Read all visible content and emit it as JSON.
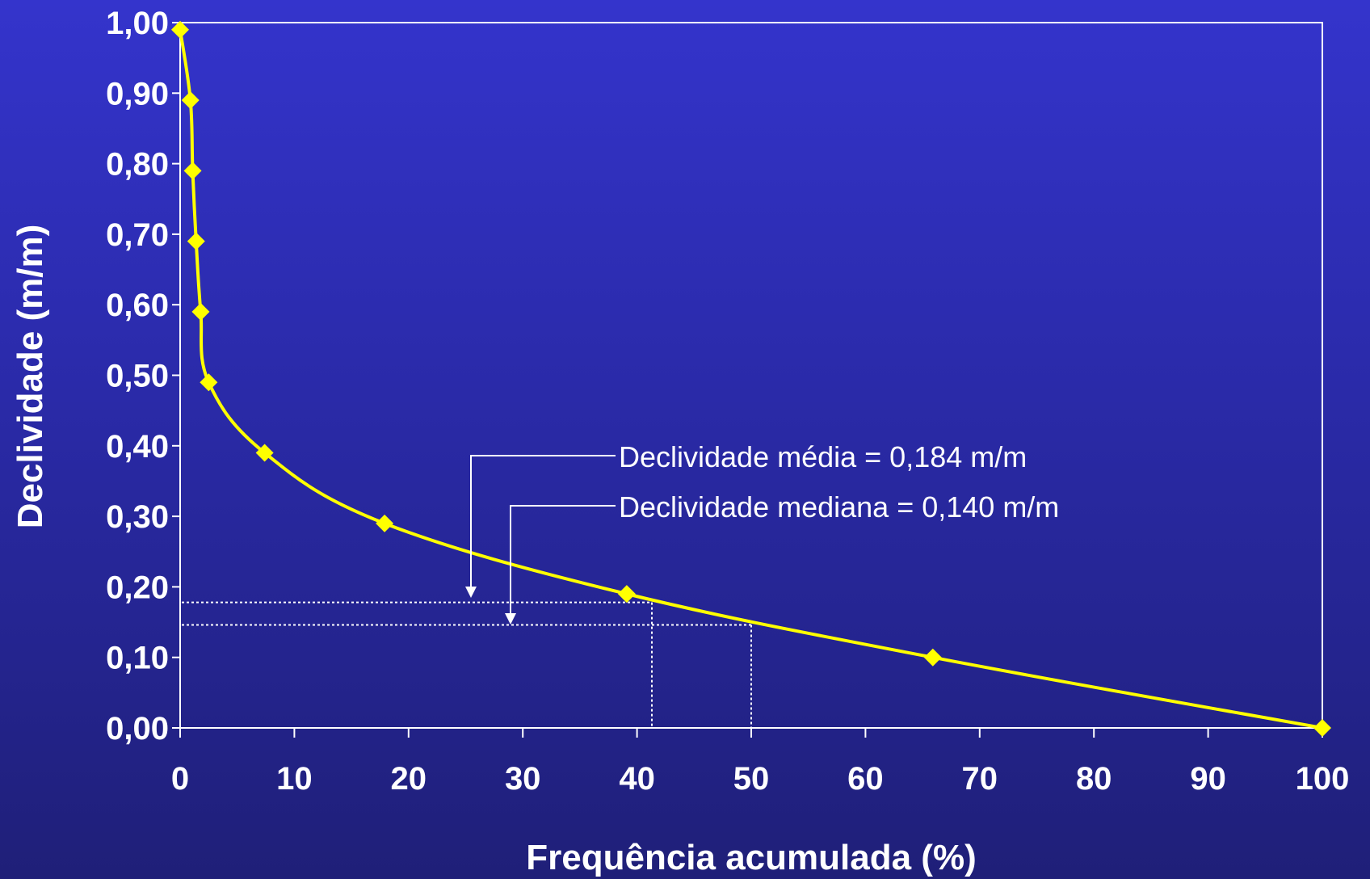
{
  "chart_data": {
    "type": "line",
    "xlabel": "Frequência acumulada (%)",
    "ylabel": "Declividade (m/m)",
    "xlim": [
      0,
      100
    ],
    "ylim": [
      0,
      1
    ],
    "x_ticks": [
      "0",
      "10",
      "20",
      "30",
      "40",
      "50",
      "60",
      "70",
      "80",
      "90",
      "100"
    ],
    "y_ticks": [
      "0,00",
      "0,10",
      "0,20",
      "0,30",
      "0,40",
      "0,50",
      "0,60",
      "0,70",
      "0,80",
      "0,90",
      "1,00"
    ],
    "grid": false,
    "series": [
      {
        "x": [
          0,
          0.9,
          1.1,
          1.4,
          1.8,
          2.5,
          7.4,
          17.9,
          39.1,
          65.9,
          100
        ],
        "y": [
          0.99,
          0.89,
          0.79,
          0.69,
          0.59,
          0.49,
          0.39,
          0.29,
          0.19,
          0.1,
          0.0
        ],
        "color": "#ffff00"
      }
    ],
    "annotations": [
      {
        "text": "Declividade média = 0,184 m/m",
        "y": 0.178,
        "x": 41.3
      },
      {
        "text": "Declividade mediana = 0,140 m/m",
        "y": 0.146,
        "x": 50.0
      }
    ],
    "colors": {
      "line": "#ffff00",
      "axis": "#ffffff",
      "guides": "#ffffff"
    }
  }
}
